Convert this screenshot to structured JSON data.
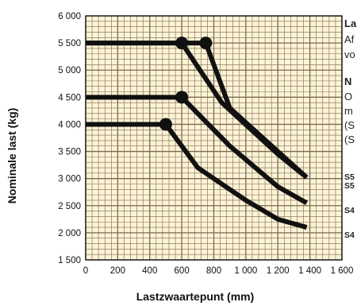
{
  "chart_data": {
    "type": "line",
    "title": "",
    "xlabel": "Lastzwaartepunt (mm)",
    "ylabel": "Nominale last (kg)",
    "xlim": [
      0,
      1600
    ],
    "ylim": [
      1500,
      6000
    ],
    "x_ticks": [
      0,
      200,
      400,
      600,
      800,
      1000,
      1200,
      1400,
      1600
    ],
    "x_tick_labels": [
      "0",
      "200",
      "400",
      "600",
      "800",
      "1 000",
      "1 200",
      "1 400",
      "1 600"
    ],
    "y_ticks": [
      1500,
      2000,
      2500,
      3000,
      3500,
      4000,
      4500,
      5000,
      5500,
      6000
    ],
    "y_tick_labels": [
      "1 500",
      "2 000",
      "2 500",
      "3 000",
      "3 500",
      "4 000",
      "4 500",
      "5 000",
      "5 500",
      "6 000"
    ],
    "grid": true,
    "background_color": "#fdf3d6",
    "grid_color": "#7a6a50",
    "line_color": "#111111",
    "series": [
      {
        "x": [
          0,
          750,
          900,
          1200,
          1380
        ],
        "y": [
          5500,
          5500,
          4300,
          3500,
          3020
        ],
        "marker_at": 1
      },
      {
        "x": [
          0,
          600,
          850,
          1200,
          1380
        ],
        "y": [
          5500,
          5500,
          4400,
          3450,
          3020
        ],
        "marker_at": 1
      },
      {
        "x": [
          0,
          600,
          900,
          1200,
          1380
        ],
        "y": [
          4500,
          4500,
          3600,
          2850,
          2550
        ],
        "marker_at": 1
      },
      {
        "x": [
          0,
          500,
          700,
          1000,
          1200,
          1380
        ],
        "y": [
          4000,
          4000,
          3200,
          2600,
          2250,
          2100
        ],
        "marker_at": 1
      }
    ]
  },
  "side_panel": {
    "heading": "La",
    "line1": "Af",
    "line2": "vo",
    "subheading": "N",
    "line3": "O",
    "line4": "m",
    "line5": "(S",
    "line6": "(S",
    "label_a": "S5",
    "label_b": "S5",
    "label_c": "S4",
    "label_d": "S4"
  }
}
